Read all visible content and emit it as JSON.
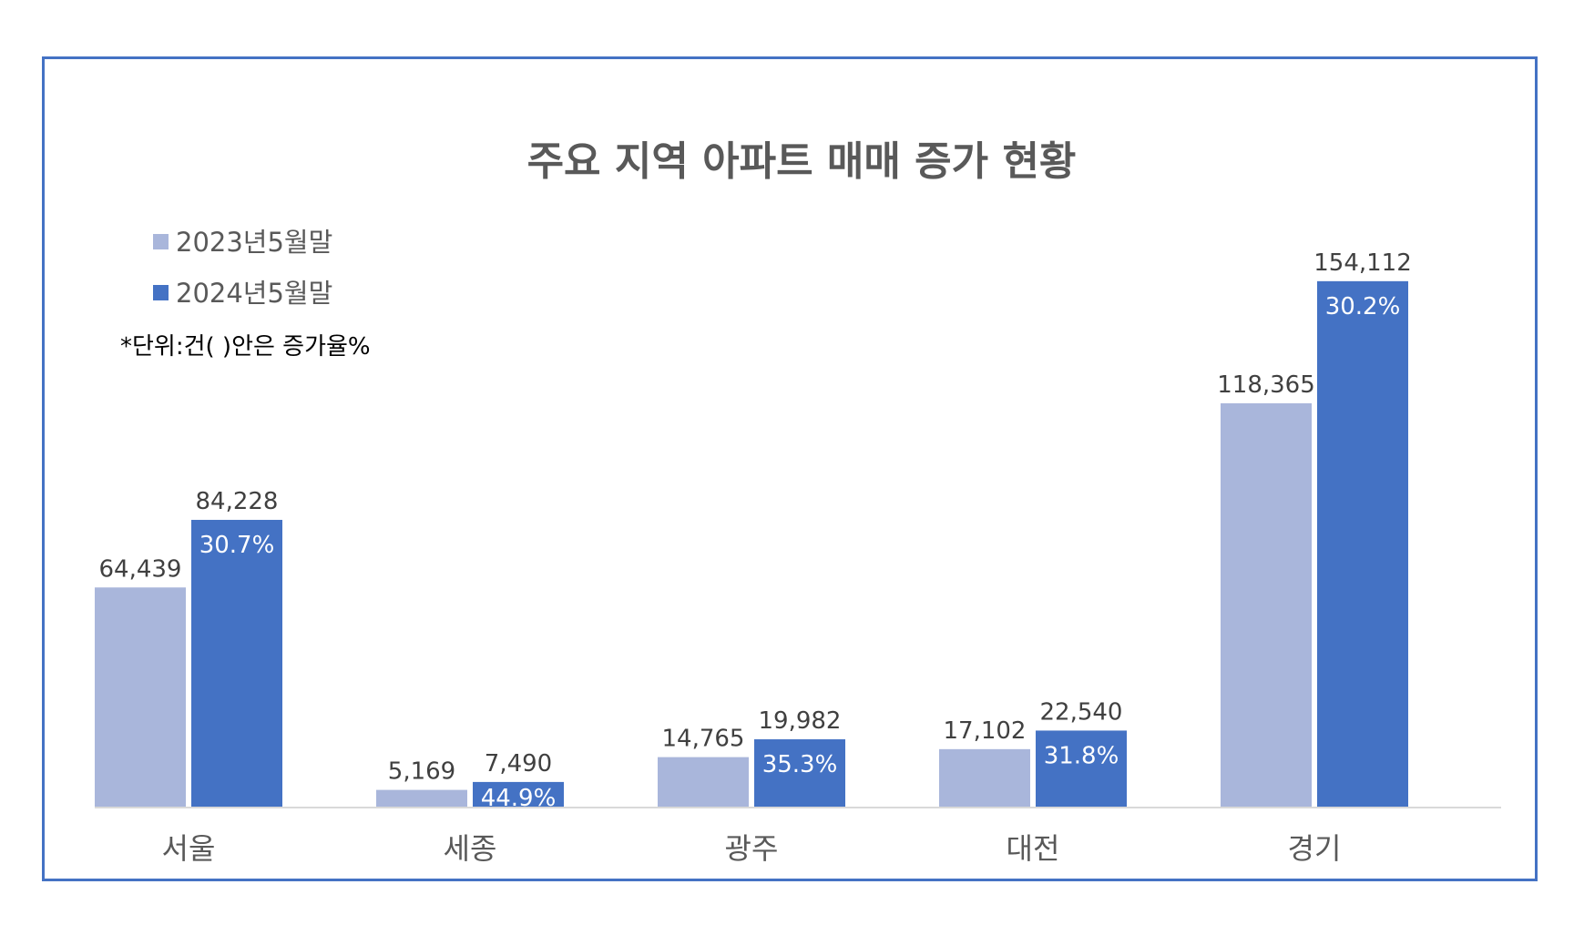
{
  "chart_data": {
    "type": "bar",
    "title": "주요 지역 아파트 매매 증가 현황",
    "note": "*단위:건(  )안은 증가율%",
    "categories": [
      "서울",
      "세종",
      "광주",
      "대전",
      "경기"
    ],
    "series": [
      {
        "name": "2023년5월말",
        "color": "#a9b6db",
        "values": [
          64439,
          5169,
          14765,
          17102,
          118365
        ],
        "labels": [
          "64,439",
          "5,169",
          "14,765",
          "17,102",
          "118,365"
        ]
      },
      {
        "name": "2024년5월말",
        "color": "#4472c4",
        "values": [
          84228,
          7490,
          19982,
          22540,
          154112
        ],
        "labels": [
          "84,228",
          "7,490",
          "19,982",
          "22,540",
          "154,112"
        ]
      }
    ],
    "growth_labels": [
      "30.7%",
      "44.9%",
      "35.3%",
      "31.8%",
      "30.2%"
    ],
    "ylim": [
      0,
      165000
    ],
    "legend_position": "top-left",
    "grid": false
  }
}
